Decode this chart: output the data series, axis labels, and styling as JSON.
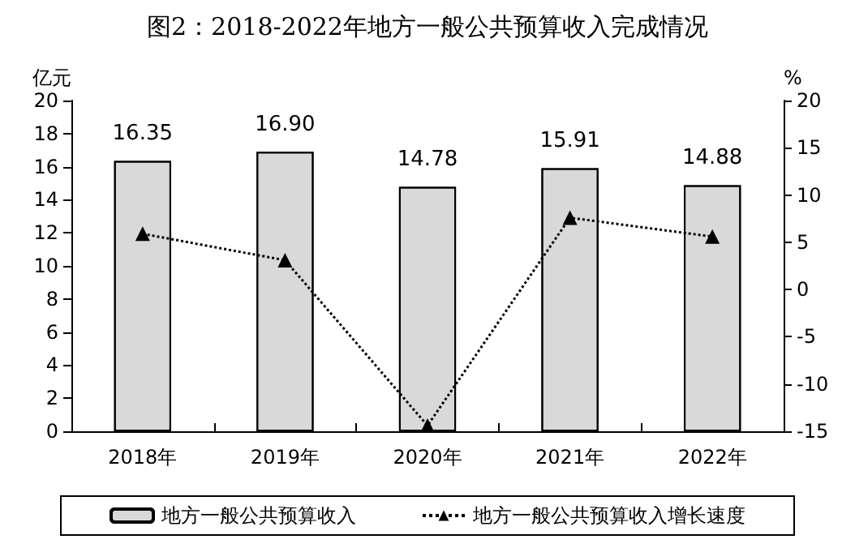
{
  "chart_data": {
    "type": "bar",
    "title": "图2：2018-2022年地方一般公共预算收入完成情况",
    "ylabel": "亿元",
    "y2label": "%",
    "categories": [
      "2018年",
      "2019年",
      "2020年",
      "2021年",
      "2022年"
    ],
    "series": [
      {
        "name": "地方一般公共预算收入",
        "color": "#d9d9d9",
        "values": [
          16.35,
          16.9,
          14.78,
          15.91,
          14.88
        ],
        "value_labels": [
          "16.35",
          "16.90",
          "14.78",
          "15.91",
          "14.88"
        ]
      },
      {
        "name": "地方一般公共预算收入增长速度",
        "type": "line",
        "axis": "y2",
        "color": "#000000",
        "marker": "triangle",
        "line_style": "dotted",
        "values": [
          5.9,
          3.1,
          -14.4,
          7.6,
          5.6
        ]
      }
    ],
    "ylim": [
      0,
      20
    ],
    "yticks": [
      0,
      2,
      4,
      6,
      8,
      10,
      12,
      14,
      16,
      18,
      20
    ],
    "y2lim": [
      -15,
      20
    ],
    "y2ticks": [
      -15,
      -10,
      -5,
      0,
      5,
      10,
      15,
      20
    ],
    "grid": false,
    "legend": "bottom"
  }
}
